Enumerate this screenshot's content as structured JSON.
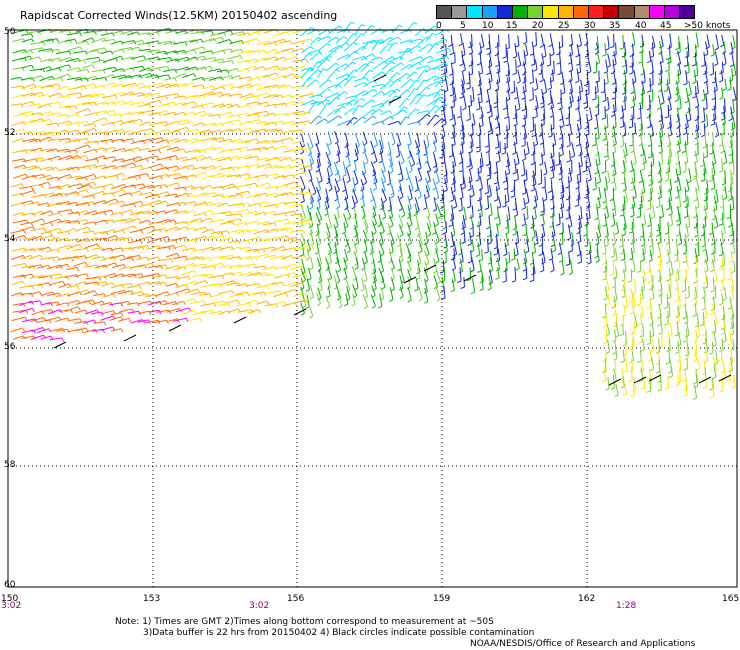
{
  "title": "Rapidscat Corrected Winds(12.5KM) 20150402 ascending",
  "legend": {
    "colors": [
      "#555555",
      "#999999",
      "#00e5ff",
      "#1aa0ff",
      "#1428d8",
      "#00b400",
      "#78d232",
      "#ffe600",
      "#ffb400",
      "#ff6a00",
      "#ff1e1e",
      "#c80000",
      "#7a4b32",
      "#b48a6e",
      "#ff00ff",
      "#b400dc",
      "#50009a"
    ],
    "labels": [
      "0",
      "5",
      "10",
      "15",
      "20",
      "25",
      "30",
      "35",
      "40",
      "45",
      ">50 knots"
    ]
  },
  "axes": {
    "lat_labels": [
      "50",
      "52",
      "54",
      "56",
      "58",
      "60"
    ],
    "lon_labels": [
      "150",
      "153",
      "156",
      "159",
      "162",
      "165"
    ]
  },
  "times": [
    "3:02",
    "3:02",
    "1:28"
  ],
  "notes": {
    "line1": "Note: 1) Times are GMT 2)Times along bottom correspond to measurement at ~50S",
    "line2": "3)Data buffer is 22 hrs from 20150402 4) Black circles indicate possible contamination",
    "line3": "NOAA/NESDIS/Office of Research and Applications"
  }
}
